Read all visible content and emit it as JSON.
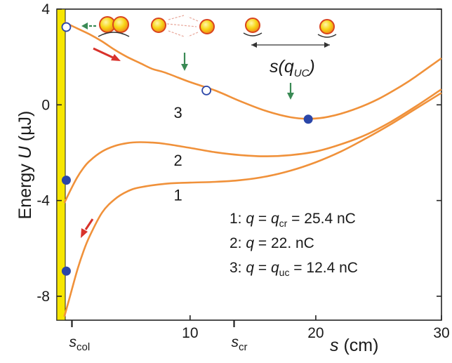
{
  "chart_data": {
    "type": "line",
    "title": "",
    "xlabel": {
      "var": "s",
      "unit": " (cm)"
    },
    "ylabel": {
      "prefix": "Energy ",
      "var": "U",
      "unit": " (µJ)"
    },
    "xlim": [
      -0.6,
      30
    ],
    "ylim": [
      -9,
      4
    ],
    "x_ticks": [
      10,
      20,
      30
    ],
    "y_ticks": [
      4,
      0,
      -4,
      -8
    ],
    "special_x_ticks": [
      {
        "name": "s-col",
        "main": "s",
        "sub": "col",
        "x": 0.6
      },
      {
        "name": "s-cr",
        "main": "s",
        "sub": "cr",
        "x": 13.5
      }
    ],
    "series": [
      {
        "name": "1",
        "color": "#f0913a",
        "x": [
          0,
          0.5,
          1,
          1.5,
          2,
          3,
          4,
          5,
          6,
          8,
          10,
          12,
          14,
          16,
          18,
          20,
          22,
          24,
          26,
          28,
          30
        ],
        "y": [
          -8.85,
          -7.9,
          -6.95,
          -6.15,
          -5.5,
          -4.5,
          -3.95,
          -3.62,
          -3.45,
          -3.3,
          -3.25,
          -3.22,
          -3.15,
          -3.0,
          -2.75,
          -2.4,
          -1.95,
          -1.4,
          -0.8,
          -0.15,
          0.5
        ]
      },
      {
        "name": "2",
        "color": "#f0913a",
        "x": [
          0,
          0.5,
          1,
          1.5,
          2,
          3,
          4,
          5,
          6,
          7,
          8,
          10,
          12,
          14,
          16,
          18,
          20,
          22,
          24,
          26,
          28,
          30
        ],
        "y": [
          -4.1,
          -3.55,
          -3.05,
          -2.65,
          -2.35,
          -1.95,
          -1.72,
          -1.6,
          -1.56,
          -1.58,
          -1.63,
          -1.8,
          -1.98,
          -2.1,
          -2.15,
          -2.1,
          -1.95,
          -1.65,
          -1.25,
          -0.7,
          -0.05,
          0.65
        ]
      },
      {
        "name": "3",
        "color": "#f0913a",
        "x": [
          0,
          1,
          2,
          3,
          4,
          5,
          6,
          7,
          8,
          10,
          12,
          14,
          16,
          18,
          19.5,
          21,
          23,
          25,
          27,
          28,
          30
        ],
        "y": [
          3.45,
          3.2,
          2.95,
          2.65,
          2.3,
          2.0,
          1.75,
          1.5,
          1.35,
          0.95,
          0.6,
          0.15,
          -0.25,
          -0.52,
          -0.58,
          -0.5,
          -0.2,
          0.25,
          0.85,
          1.2,
          1.95
        ]
      }
    ],
    "curve_labels": [
      {
        "text": "1",
        "x": 8.7,
        "y": -4.0
      },
      {
        "text": "2",
        "x": 8.7,
        "y": -2.55
      },
      {
        "text": "3",
        "x": 8.7,
        "y": -0.55
      }
    ],
    "markers": [
      {
        "name": "curve3-start-open-circle",
        "x": 0.15,
        "y": 3.25,
        "fill": "open"
      },
      {
        "name": "curve3-open-circle",
        "x": 11.3,
        "y": 0.6,
        "fill": "open"
      },
      {
        "name": "curve3-minimum-dot",
        "x": 19.4,
        "y": -0.6,
        "fill": "filled"
      },
      {
        "name": "curve2-dot",
        "x": 0.15,
        "y": -3.15,
        "fill": "filled"
      },
      {
        "name": "curve1-dot",
        "x": 0.15,
        "y": -6.95,
        "fill": "filled"
      }
    ],
    "annotation": {
      "main": "s(q",
      "sub": "UC",
      "close": ")"
    },
    "legend": {
      "placement": "bottom-right",
      "entries": [
        {
          "prefix": "1: ",
          "q": "q",
          "mid": " = ",
          "q2": "q",
          "sub": "cr",
          "value": " = 25.4 nC"
        },
        {
          "prefix": "2: ",
          "q": "q",
          "mid": " = 22. nC",
          "q2": "",
          "sub": "",
          "value": ""
        },
        {
          "prefix": "3: ",
          "q": "q",
          "mid": " = ",
          "q2": "q",
          "sub": "uc",
          "value": " = 12.4 nC"
        }
      ]
    },
    "colors": {
      "curve": "#f0913a",
      "wall": "#f7e600",
      "marker": "#2b46a8",
      "red_arrow": "#d8322b",
      "green_arrow": "#3a8a55",
      "sphere_fill": "#f7d515",
      "sphere_stroke": "#d9441e"
    },
    "grid": false
  }
}
